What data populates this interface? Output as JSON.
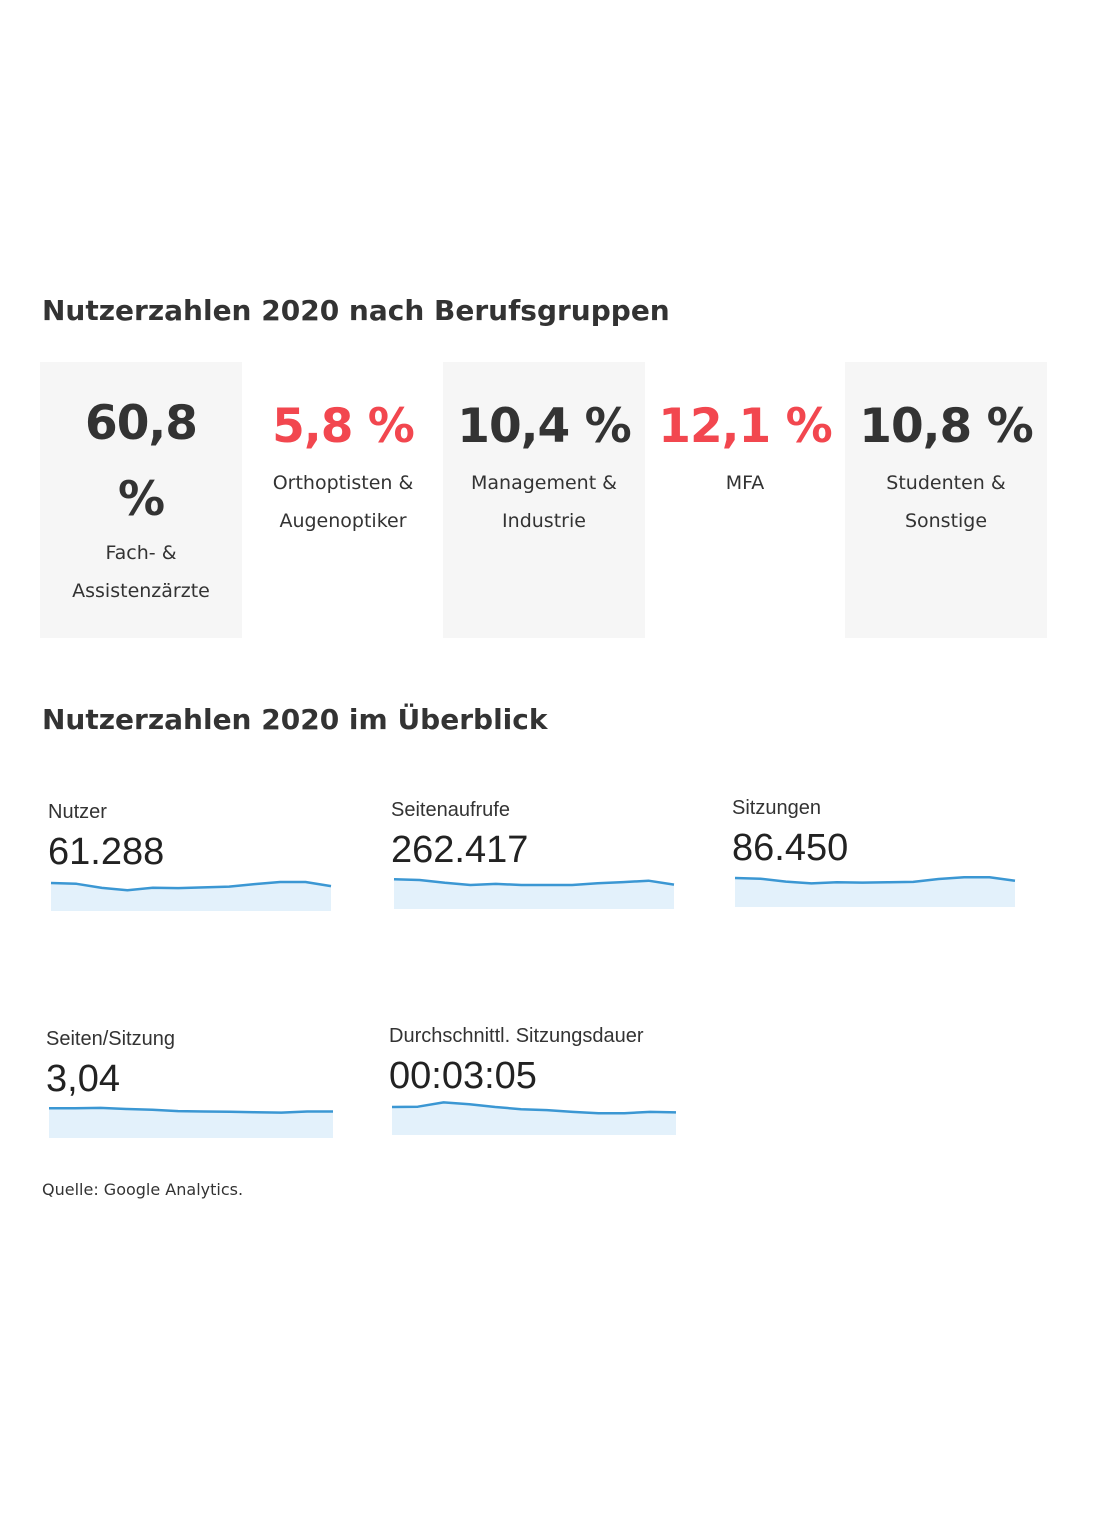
{
  "section_groups": {
    "title": "Nutzerzahlen 2020 nach Berufsgruppen",
    "cards": [
      {
        "value": "60,8 %",
        "label": "Fach- & Assistenzärzte",
        "color": "#333333",
        "shaded": true
      },
      {
        "value": "5,8 %",
        "label": "Orthoptisten & Augenoptiker",
        "color": "#f2474f",
        "shaded": false
      },
      {
        "value": "10,4 %",
        "label": "Management & Industrie",
        "color": "#333333",
        "shaded": true
      },
      {
        "value": "12,1 %",
        "label": "MFA",
        "color": "#f2474f",
        "shaded": false
      },
      {
        "value": "10,8 %",
        "label": "Studenten & Sonstige",
        "color": "#333333",
        "shaded": true
      }
    ]
  },
  "section_overview": {
    "title": "Nutzerzahlen 2020 im Überblick",
    "metrics": [
      {
        "label": "Nutzer",
        "value": "61.288",
        "trend": [
          0.72,
          0.68,
          0.45,
          0.32,
          0.46,
          0.44,
          0.48,
          0.52,
          0.66,
          0.78,
          0.78,
          0.55
        ]
      },
      {
        "label": "Seitenaufrufe",
        "value": "262.417",
        "trend": [
          0.82,
          0.78,
          0.62,
          0.5,
          0.56,
          0.5,
          0.5,
          0.5,
          0.6,
          0.66,
          0.74,
          0.52
        ]
      },
      {
        "label": "Sitzungen",
        "value": "86.450",
        "trend": [
          0.78,
          0.74,
          0.58,
          0.48,
          0.54,
          0.52,
          0.54,
          0.56,
          0.72,
          0.82,
          0.82,
          0.62
        ]
      },
      {
        "label": "Seiten/Sitzung",
        "value": "3,04",
        "trend": [
          0.82,
          0.82,
          0.84,
          0.78,
          0.74,
          0.66,
          0.64,
          0.62,
          0.6,
          0.58,
          0.64,
          0.64
        ]
      },
      {
        "label": "Durchschnittl. Sitzungsdauer",
        "value": "00:03:05",
        "trend": [
          0.72,
          0.74,
          0.98,
          0.88,
          0.72,
          0.6,
          0.55,
          0.45,
          0.38,
          0.38,
          0.45,
          0.42
        ]
      }
    ],
    "chart_style": {
      "line_color": "#3b97d3",
      "fill_color": "#e3f1fb"
    }
  },
  "source": "Quelle: Google Analytics."
}
